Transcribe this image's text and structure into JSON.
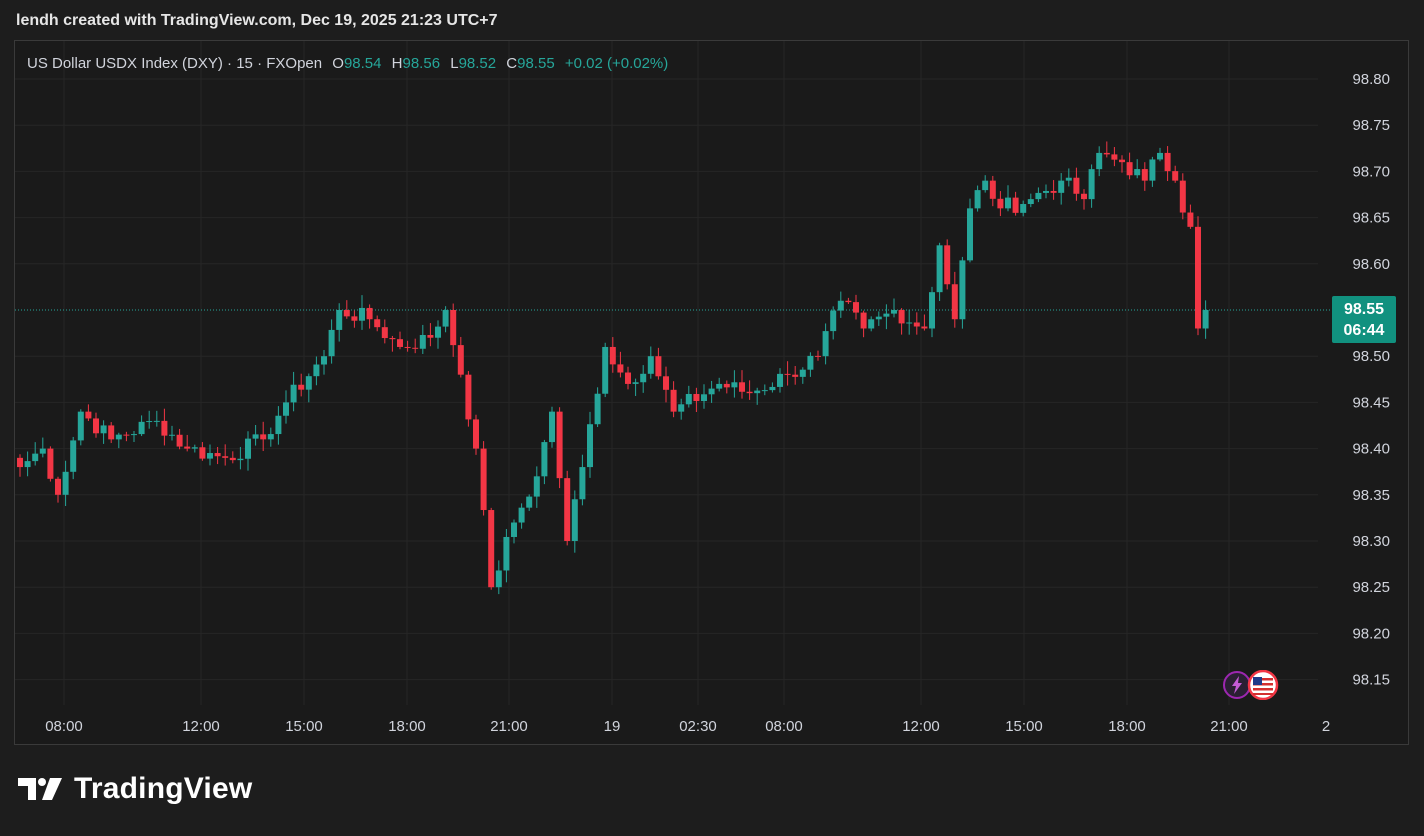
{
  "header": {
    "text": "lendh created with TradingView.com, Dec 19, 2025 21:23 UTC+7"
  },
  "legend": {
    "symbol": "US Dollar USDX Index (DXY) · 15 · FXOpen",
    "o_label": "O",
    "o_value": "98.54",
    "h_label": "H",
    "h_value": "98.56",
    "l_label": "L",
    "l_value": "98.52",
    "c_label": "C",
    "c_value": "98.55",
    "change": "+0.02 (+0.02%)"
  },
  "last_price": {
    "price": "98.55",
    "countdown": "06:44"
  },
  "brand": {
    "name": "TradingView"
  },
  "colors": {
    "up": "#26a69a",
    "down": "#f23645",
    "background": "#1a1a1a",
    "grid": "#262626",
    "text": "#d1d4dc",
    "badge": "#11917f"
  },
  "event_icons": [
    "lightning-icon",
    "us-flag-icon"
  ],
  "chart_data": {
    "type": "candlestick",
    "interval": "15",
    "y_ticks": [
      "98.80",
      "98.75",
      "98.70",
      "98.65",
      "98.60",
      "98.50",
      "98.45",
      "98.40",
      "98.35",
      "98.30",
      "98.25",
      "98.20",
      "98.15"
    ],
    "ylim": [
      98.13,
      98.82
    ],
    "x_ticks": [
      "08:00",
      "12:00",
      "15:00",
      "18:00",
      "21:00",
      "19",
      "02:30",
      "08:00",
      "12:00",
      "15:00",
      "18:00",
      "21:00",
      "2"
    ],
    "grid": true,
    "current_price": 98.55,
    "anchors": [
      {
        "t": 0,
        "p": 98.38
      },
      {
        "t": 3,
        "p": 98.4
      },
      {
        "t": 5,
        "p": 98.35
      },
      {
        "t": 8,
        "p": 98.44
      },
      {
        "t": 12,
        "p": 98.41
      },
      {
        "t": 18,
        "p": 98.43
      },
      {
        "t": 22,
        "p": 98.4
      },
      {
        "t": 27,
        "p": 98.39
      },
      {
        "t": 32,
        "p": 98.41
      },
      {
        "t": 35,
        "p": 98.45
      },
      {
        "t": 40,
        "p": 98.5
      },
      {
        "t": 42,
        "p": 98.55
      },
      {
        "t": 46,
        "p": 98.54
      },
      {
        "t": 50,
        "p": 98.51
      },
      {
        "t": 54,
        "p": 98.52
      },
      {
        "t": 56,
        "p": 98.55
      },
      {
        "t": 58,
        "p": 98.48
      },
      {
        "t": 60,
        "p": 98.4
      },
      {
        "t": 62,
        "p": 98.25
      },
      {
        "t": 65,
        "p": 98.32
      },
      {
        "t": 68,
        "p": 98.37
      },
      {
        "t": 70,
        "p": 98.44
      },
      {
        "t": 72,
        "p": 98.3
      },
      {
        "t": 74,
        "p": 98.38
      },
      {
        "t": 77,
        "p": 98.51
      },
      {
        "t": 80,
        "p": 98.47
      },
      {
        "t": 83,
        "p": 98.5
      },
      {
        "t": 86,
        "p": 98.44
      },
      {
        "t": 92,
        "p": 98.47
      },
      {
        "t": 96,
        "p": 98.46
      },
      {
        "t": 101,
        "p": 98.48
      },
      {
        "t": 105,
        "p": 98.5
      },
      {
        "t": 108,
        "p": 98.56
      },
      {
        "t": 111,
        "p": 98.53
      },
      {
        "t": 115,
        "p": 98.55
      },
      {
        "t": 119,
        "p": 98.53
      },
      {
        "t": 121,
        "p": 98.62
      },
      {
        "t": 123,
        "p": 98.54
      },
      {
        "t": 125,
        "p": 98.66
      },
      {
        "t": 127,
        "p": 98.69
      },
      {
        "t": 129,
        "p": 98.66
      },
      {
        "t": 133,
        "p": 98.67
      },
      {
        "t": 137,
        "p": 98.69
      },
      {
        "t": 140,
        "p": 98.67
      },
      {
        "t": 142,
        "p": 98.72
      },
      {
        "t": 145,
        "p": 98.71
      },
      {
        "t": 148,
        "p": 98.69
      },
      {
        "t": 150,
        "p": 98.72
      },
      {
        "t": 152,
        "p": 98.69
      },
      {
        "t": 154,
        "p": 98.64
      },
      {
        "t": 155,
        "p": 98.53
      },
      {
        "t": 156,
        "p": 98.55
      }
    ]
  }
}
